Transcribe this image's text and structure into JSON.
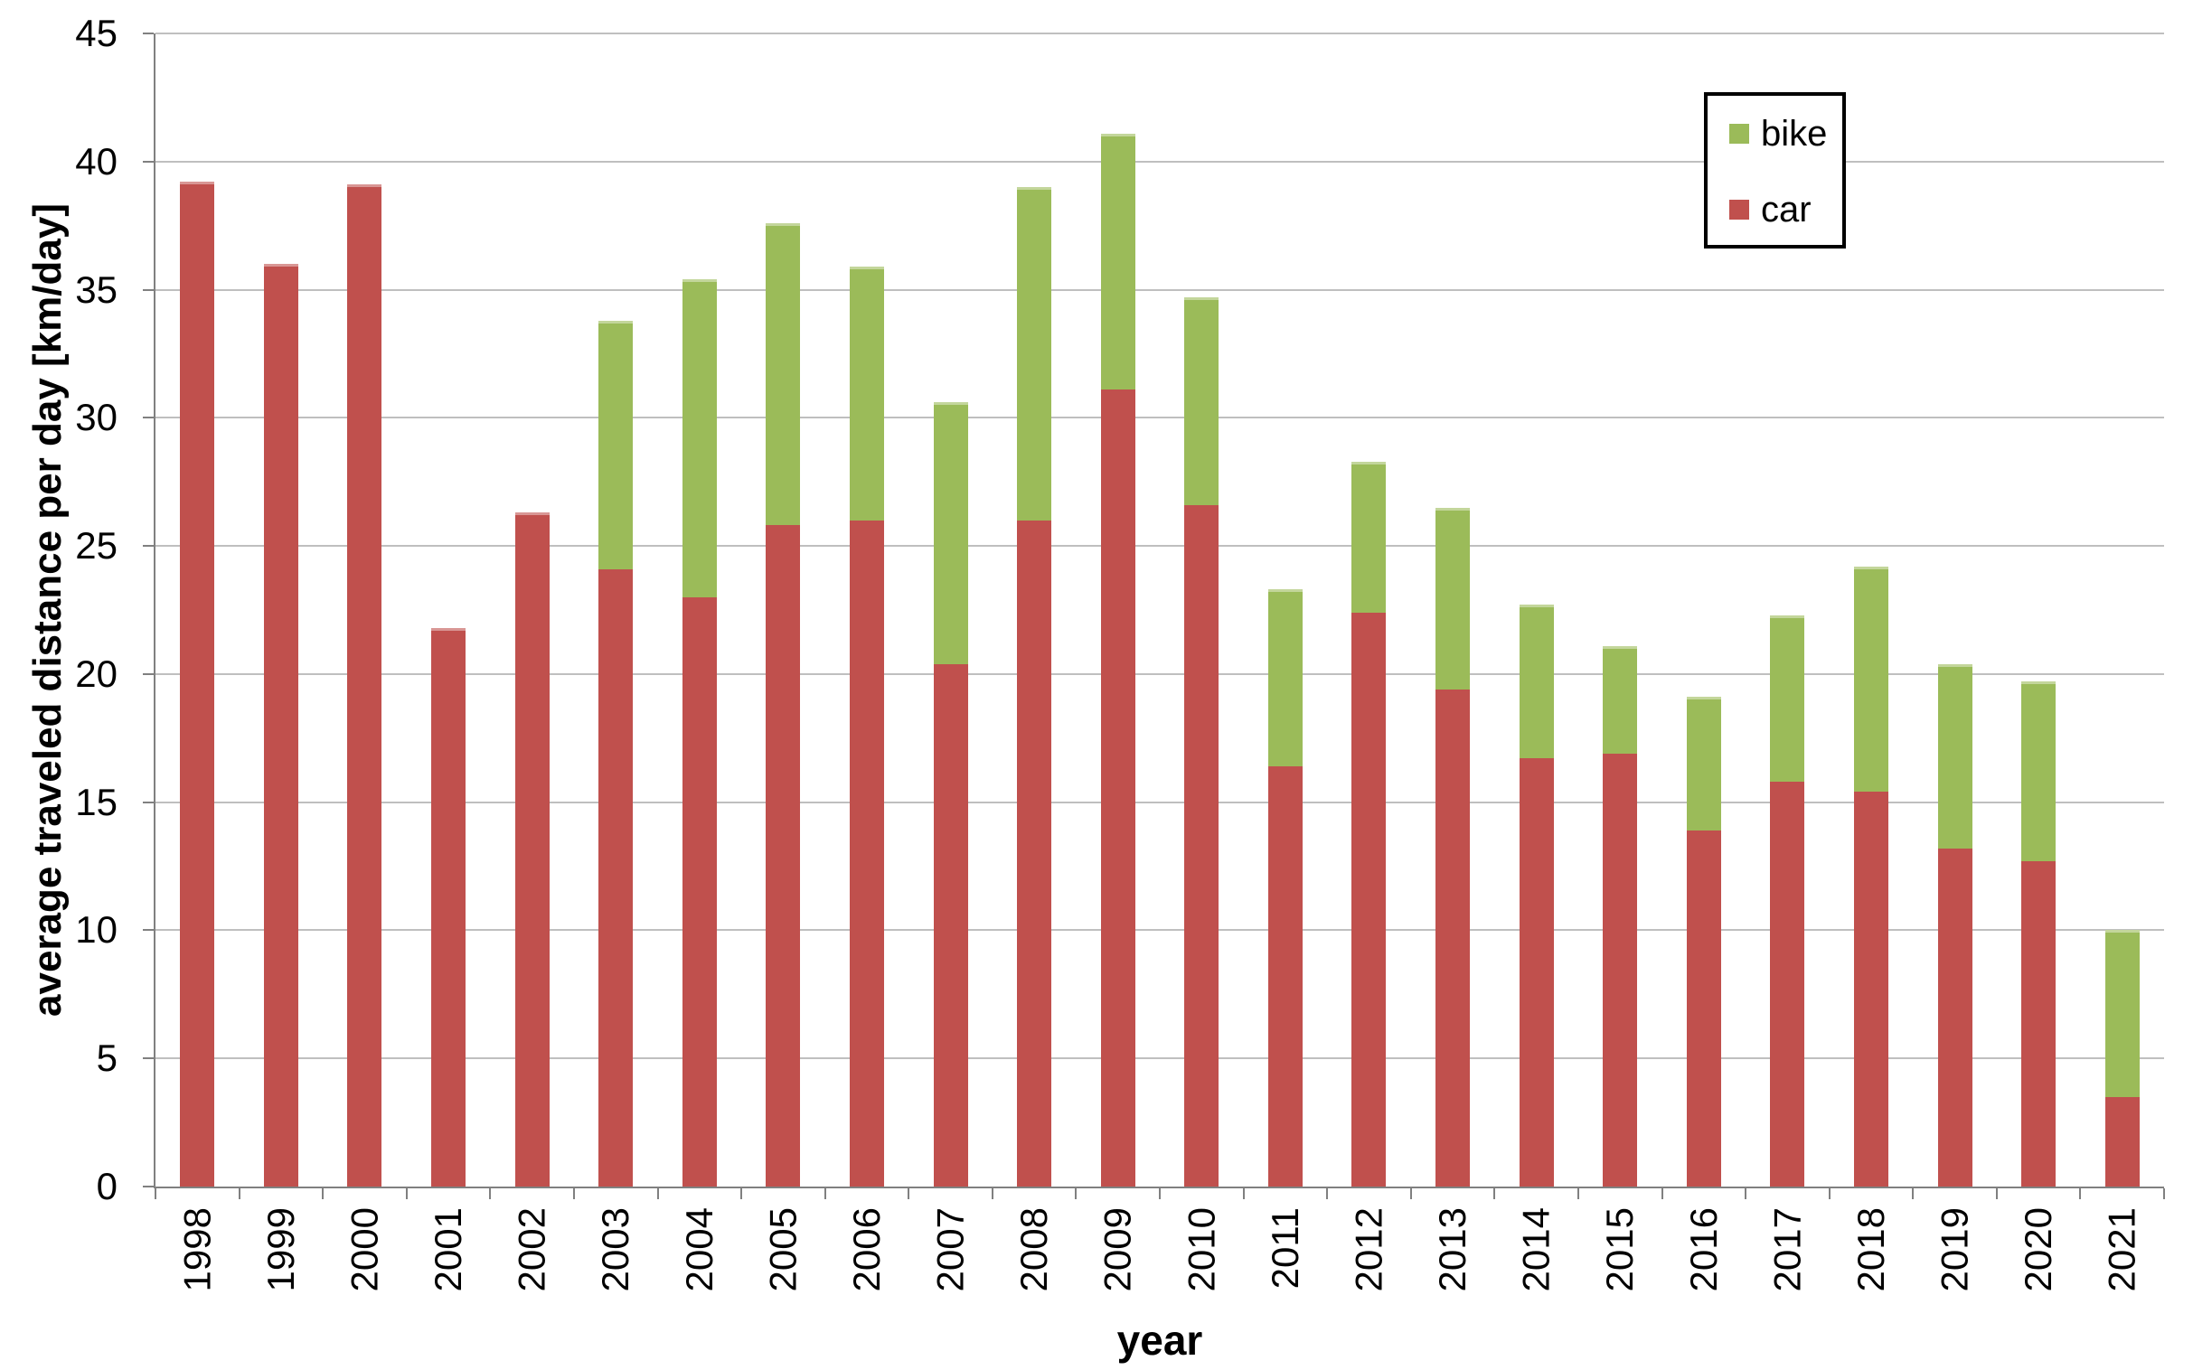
{
  "chart_data": {
    "type": "bar",
    "stacked": true,
    "title": "",
    "xlabel": "year",
    "ylabel": "average traveled distance per day [km/day]",
    "ylim": [
      0,
      45
    ],
    "yticks": [
      0,
      5,
      10,
      15,
      20,
      25,
      30,
      35,
      40,
      45
    ],
    "grid": true,
    "legend_position": "top-right",
    "categories": [
      "1998",
      "1999",
      "2000",
      "2001",
      "2002",
      "2003",
      "2004",
      "2005",
      "2006",
      "2007",
      "2008",
      "2009",
      "2010",
      "2011",
      "2012",
      "2013",
      "2014",
      "2015",
      "2016",
      "2017",
      "2018",
      "2019",
      "2020",
      "2021"
    ],
    "series": [
      {
        "name": "car",
        "color": "#C0504D",
        "values": [
          39.2,
          36.0,
          39.1,
          21.8,
          26.3,
          24.1,
          23.0,
          25.8,
          26.0,
          20.4,
          26.0,
          31.1,
          26.6,
          16.4,
          22.4,
          19.4,
          16.7,
          16.9,
          13.9,
          15.8,
          15.4,
          13.2,
          12.7,
          3.5
        ]
      },
      {
        "name": "bike",
        "color": "#9BBB59",
        "values": [
          0,
          0,
          0,
          0,
          0,
          9.7,
          12.4,
          11.8,
          9.9,
          10.2,
          13.0,
          10.0,
          8.1,
          6.9,
          5.9,
          7.1,
          6.0,
          4.2,
          5.2,
          6.5,
          8.8,
          7.2,
          7.0,
          6.5
        ]
      }
    ]
  },
  "legend": {
    "items": [
      {
        "label": "bike",
        "color": "#9BBB59"
      },
      {
        "label": "car",
        "color": "#C0504D"
      }
    ]
  },
  "colors": {
    "car": "#C0504D",
    "bike": "#9BBB59",
    "gridline": "#BFBFBF",
    "axis": "#808080"
  }
}
